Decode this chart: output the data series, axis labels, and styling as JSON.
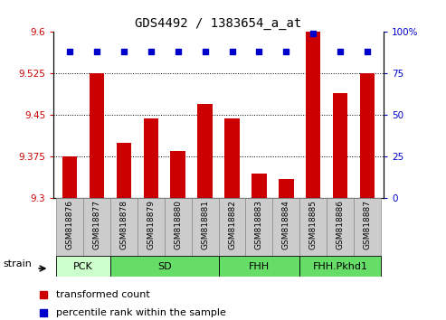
{
  "title": "GDS4492 / 1383654_a_at",
  "samples": [
    "GSM818876",
    "GSM818877",
    "GSM818878",
    "GSM818879",
    "GSM818880",
    "GSM818881",
    "GSM818882",
    "GSM818883",
    "GSM818884",
    "GSM818885",
    "GSM818886",
    "GSM818887"
  ],
  "transformed_count": [
    9.375,
    9.525,
    9.4,
    9.445,
    9.385,
    9.47,
    9.445,
    9.345,
    9.335,
    9.6,
    9.49,
    9.525
  ],
  "percentile_rank": [
    88,
    88,
    88,
    88,
    88,
    88,
    88,
    88,
    88,
    99,
    88,
    88
  ],
  "bar_color": "#cc0000",
  "dot_color": "#0000cc",
  "ylim_left": [
    9.3,
    9.6
  ],
  "yticks_left": [
    9.3,
    9.375,
    9.45,
    9.525,
    9.6
  ],
  "ylim_right": [
    0,
    100
  ],
  "yticks_right": [
    0,
    25,
    50,
    75,
    100
  ],
  "yticklabels_right": [
    "0",
    "25",
    "50",
    "75",
    "100%"
  ],
  "group_defs": [
    {
      "label": "PCK",
      "indices": [
        0,
        1
      ],
      "color": "#ccffcc"
    },
    {
      "label": "SD",
      "indices": [
        2,
        3,
        4,
        5
      ],
      "color": "#66dd66"
    },
    {
      "label": "FHH",
      "indices": [
        6,
        7,
        8
      ],
      "color": "#66dd66"
    },
    {
      "label": "FHH.Pkhd1",
      "indices": [
        9,
        10,
        11
      ],
      "color": "#66dd66"
    }
  ],
  "xtick_bg_color": "#cccccc",
  "strain_label": "strain",
  "legend_bar_label": "transformed count",
  "legend_dot_label": "percentile rank within the sample",
  "background_color": "#ffffff",
  "tick_color_left": "#cc0000",
  "tick_color_right": "#0000cc"
}
